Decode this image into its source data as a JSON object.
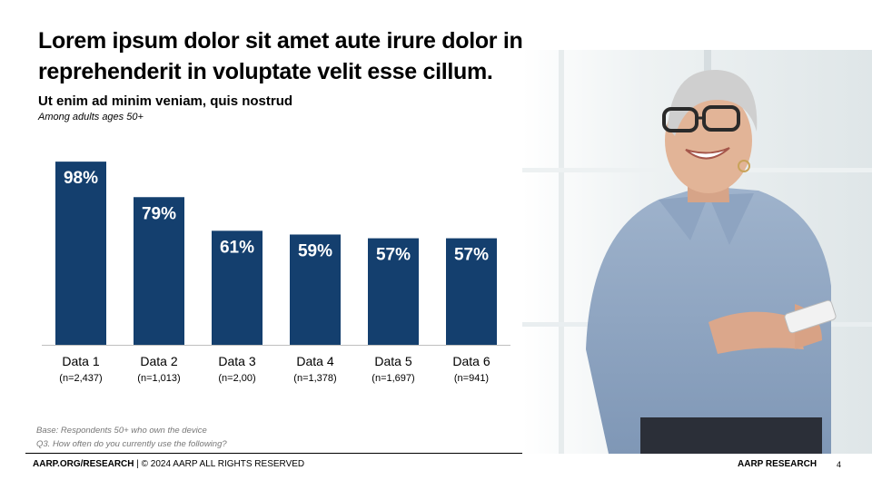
{
  "slide": {
    "title_lines": [
      "Lorem ipsum dolor sit amet aute irure dolor in",
      "reprehenderit in voluptate velit esse cillum."
    ],
    "subtitle": "Ut enim ad minim veniam, quis nostrud",
    "note": "Among adults ages 50+",
    "footnotes": [
      "Base: Respondents 50+ who own the device",
      "Q3. How often do you currently use the following?"
    ],
    "footer": {
      "left_bold": "AARP.ORG/RESEARCH",
      "left_rest": " | © 2024 AARP ALL RIGHTS RESERVED",
      "right": "AARP RESEARCH",
      "page": "4"
    }
  },
  "chart_data": {
    "type": "bar",
    "categories": [
      "Data 1",
      "Data 2",
      "Data 3",
      "Data 4",
      "Data 5",
      "Data 6"
    ],
    "sample_sizes": [
      "(n=2,437)",
      "(n=1,013)",
      "(n=2,00)",
      "(n=1,378)",
      "(n=1,697)",
      "(n=941)"
    ],
    "values": [
      98,
      79,
      61,
      59,
      57,
      57
    ],
    "value_labels": [
      "98%",
      "79%",
      "61%",
      "59%",
      "57%",
      "57%"
    ],
    "ylim": [
      0,
      100
    ],
    "grid": false,
    "bar_color": "#143f6e",
    "value_label_color": "#ffffff"
  },
  "photo": {
    "icon": "woman-with-phone-photo"
  }
}
